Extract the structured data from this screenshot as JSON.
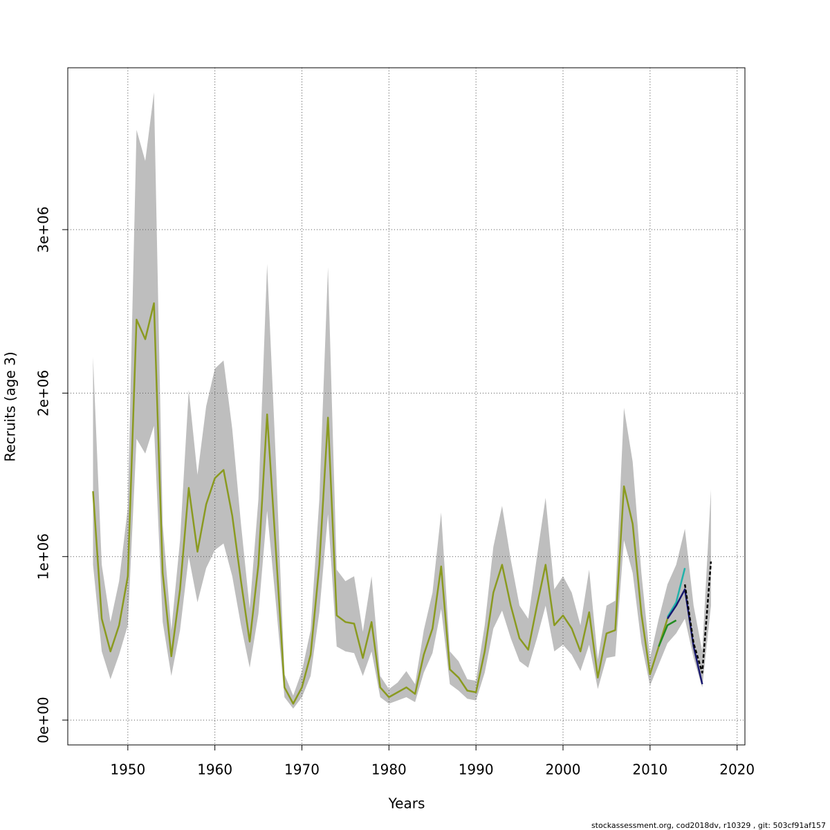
{
  "chart_data": {
    "type": "line",
    "xlabel": "Years",
    "ylabel": "Recruits (age 3)",
    "footer": "stockassessment.org, cod2018dv, r10329 , git: 503cf91af157",
    "xlim": [
      1943.1,
      2020.9
    ],
    "xticks": [
      1950,
      1960,
      1970,
      1980,
      1990,
      2000,
      2010,
      2020
    ],
    "ylim": [
      -152000,
      3990000
    ],
    "yticks": [
      {
        "value": 0,
        "label": "0e+00"
      },
      {
        "value": 1000000,
        "label": "1e+06"
      },
      {
        "value": 2000000,
        "label": "2e+06"
      },
      {
        "value": 3000000,
        "label": "3e+06"
      }
    ],
    "grid": true,
    "x": [
      1946,
      1947,
      1948,
      1949,
      1950,
      1951,
      1952,
      1953,
      1954,
      1955,
      1956,
      1957,
      1958,
      1959,
      1960,
      1961,
      1962,
      1963,
      1964,
      1965,
      1966,
      1967,
      1968,
      1969,
      1970,
      1971,
      1972,
      1973,
      1974,
      1975,
      1976,
      1977,
      1978,
      1979,
      1980,
      1981,
      1982,
      1983,
      1984,
      1985,
      1986,
      1987,
      1988,
      1989,
      1990,
      1991,
      1992,
      1993,
      1994,
      1995,
      1996,
      1997,
      1998,
      1999,
      2000,
      2001,
      2002,
      2003,
      2004,
      2005,
      2006,
      2007,
      2008,
      2009,
      2010,
      2011,
      2012,
      2013,
      2014,
      2015,
      2016,
      2017
    ],
    "band": {
      "color": "#bebebe",
      "upper": [
        2220000,
        950000,
        600000,
        850000,
        1300000,
        3610000,
        3420000,
        3840000,
        1200000,
        550000,
        1100000,
        2020000,
        1500000,
        1920000,
        2150000,
        2200000,
        1780000,
        1200000,
        680000,
        1350000,
        2790000,
        1600000,
        280000,
        150000,
        300000,
        550000,
        1350000,
        2770000,
        920000,
        850000,
        880000,
        540000,
        880000,
        270000,
        190000,
        230000,
        300000,
        220000,
        550000,
        780000,
        1270000,
        420000,
        360000,
        250000,
        240000,
        580000,
        1060000,
        1310000,
        980000,
        700000,
        620000,
        1000000,
        1360000,
        800000,
        880000,
        780000,
        580000,
        920000,
        370000,
        700000,
        730000,
        1910000,
        1580000,
        900000,
        380000,
        620000,
        830000,
        950000,
        1170000,
        700000,
        420000,
        1410000
      ],
      "lower": [
        950000,
        420000,
        250000,
        400000,
        580000,
        1720000,
        1630000,
        1800000,
        600000,
        270000,
        550000,
        1000000,
        720000,
        930000,
        1040000,
        1080000,
        880000,
        580000,
        320000,
        650000,
        1280000,
        720000,
        140000,
        70000,
        140000,
        270000,
        660000,
        1260000,
        450000,
        420000,
        410000,
        270000,
        420000,
        140000,
        100000,
        120000,
        140000,
        110000,
        290000,
        410000,
        680000,
        220000,
        180000,
        130000,
        120000,
        290000,
        560000,
        670000,
        500000,
        360000,
        320000,
        500000,
        700000,
        420000,
        460000,
        400000,
        300000,
        460000,
        190000,
        380000,
        390000,
        1100000,
        900000,
        470000,
        210000,
        340000,
        470000,
        530000,
        620000,
        380000,
        200000,
        700000
      ]
    },
    "series": [
      {
        "color": "#8a9a20",
        "values": [
          1400000,
          620000,
          420000,
          580000,
          880000,
          2450000,
          2330000,
          2550000,
          900000,
          390000,
          800000,
          1420000,
          1030000,
          1320000,
          1480000,
          1530000,
          1250000,
          850000,
          480000,
          950000,
          1870000,
          1050000,
          200000,
          100000,
          200000,
          400000,
          950000,
          1850000,
          640000,
          600000,
          590000,
          380000,
          600000,
          200000,
          140000,
          170000,
          200000,
          160000,
          400000,
          560000,
          940000,
          310000,
          260000,
          180000,
          170000,
          420000,
          780000,
          950000,
          700000,
          500000,
          430000,
          700000,
          950000,
          580000,
          640000,
          560000,
          420000,
          660000,
          260000,
          530000,
          550000,
          1430000,
          1200000,
          650000,
          280000,
          450000,
          620000,
          null,
          null,
          null,
          null,
          null
        ]
      },
      {
        "color": "#228b22",
        "x": [
          2011,
          2012,
          2013
        ],
        "values": [
          450000,
          580000,
          610000
        ]
      },
      {
        "color": "#20b2aa",
        "x": [
          2012,
          2013,
          2014
        ],
        "values": [
          630000,
          720000,
          930000
        ]
      },
      {
        "color": "#191970",
        "x": [
          2012,
          2013,
          2014,
          2015,
          2016
        ],
        "values": [
          620000,
          700000,
          800000,
          450000,
          220000
        ]
      },
      {
        "color": "#000000",
        "dashed": true,
        "x": [
          2014,
          2015,
          2016,
          2017
        ],
        "values": [
          830000,
          470000,
          290000,
          970000
        ]
      }
    ]
  }
}
